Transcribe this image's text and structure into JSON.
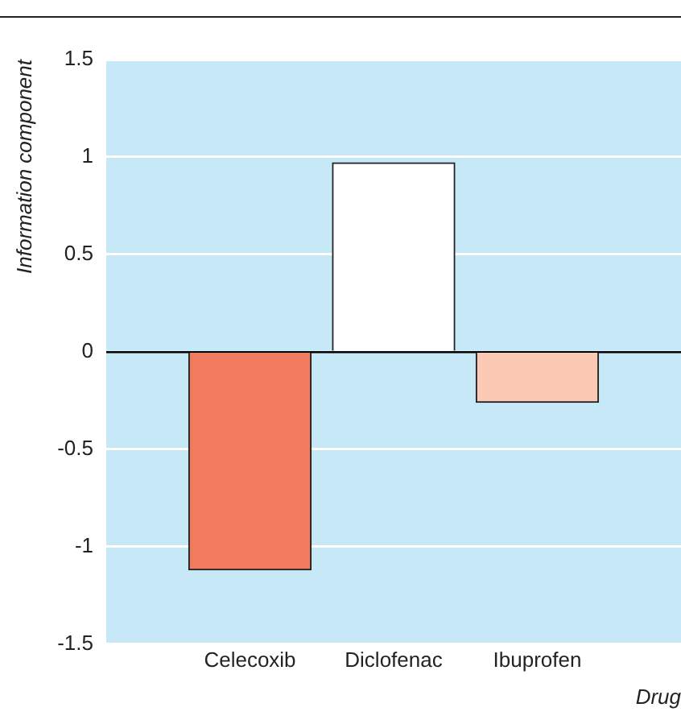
{
  "chart_data": {
    "type": "bar",
    "xlabel": "Drug",
    "ylabel": "Information component",
    "categories": [
      "Celecoxib",
      "Diclofenac",
      "Ibuprofen"
    ],
    "values": [
      -1.12,
      0.97,
      -0.26
    ],
    "colors": [
      "#f07b5e",
      "#ffffff",
      "#fbc9b4"
    ],
    "ylim": [
      -1.5,
      1.5
    ],
    "yticks": [
      -1.5,
      -1,
      -0.5,
      0,
      0.5,
      1,
      1.5
    ],
    "grid": "y"
  }
}
